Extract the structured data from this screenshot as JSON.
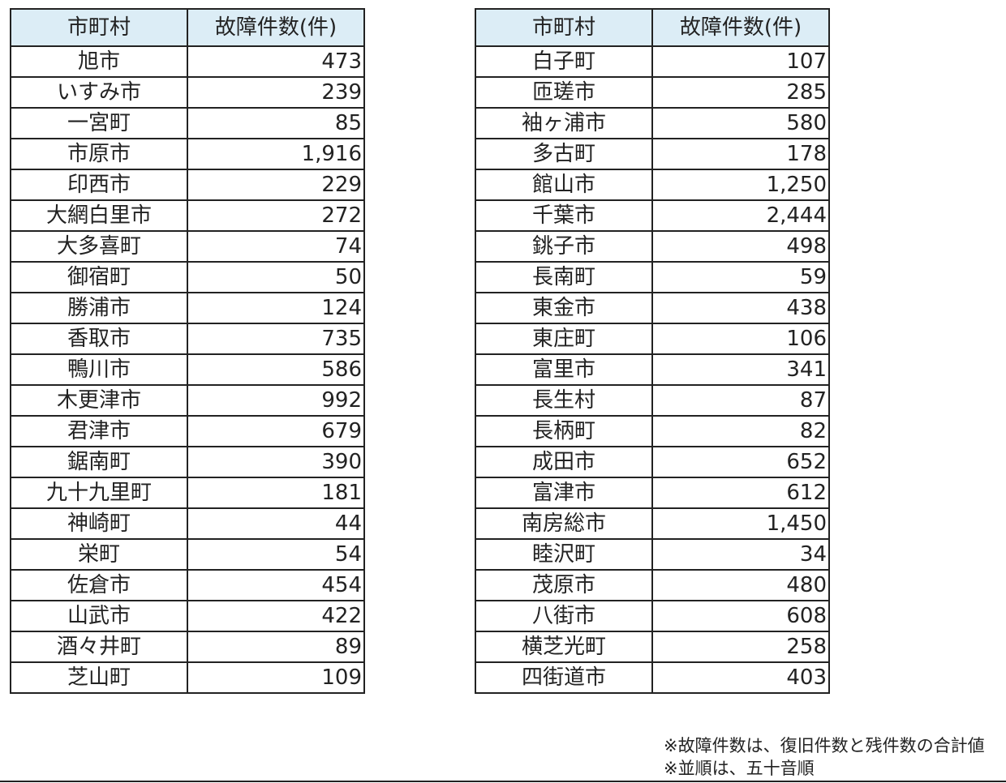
{
  "headers": {
    "municipality": "市町村",
    "count": "故障件数(件)"
  },
  "left_rows": [
    {
      "name": "旭市",
      "count": "473"
    },
    {
      "name": "いすみ市",
      "count": "239"
    },
    {
      "name": "一宮町",
      "count": "85"
    },
    {
      "name": "市原市",
      "count": "1,916"
    },
    {
      "name": "印西市",
      "count": "229"
    },
    {
      "name": "大網白里市",
      "count": "272"
    },
    {
      "name": "大多喜町",
      "count": "74"
    },
    {
      "name": "御宿町",
      "count": "50"
    },
    {
      "name": "勝浦市",
      "count": "124"
    },
    {
      "name": "香取市",
      "count": "735"
    },
    {
      "name": "鴨川市",
      "count": "586"
    },
    {
      "name": "木更津市",
      "count": "992"
    },
    {
      "name": "君津市",
      "count": "679"
    },
    {
      "name": "鋸南町",
      "count": "390"
    },
    {
      "name": "九十九里町",
      "count": "181"
    },
    {
      "name": "神崎町",
      "count": "44"
    },
    {
      "name": "栄町",
      "count": "54"
    },
    {
      "name": "佐倉市",
      "count": "454"
    },
    {
      "name": "山武市",
      "count": "422"
    },
    {
      "name": "酒々井町",
      "count": "89"
    },
    {
      "name": "芝山町",
      "count": "109"
    }
  ],
  "right_rows": [
    {
      "name": "白子町",
      "count": "107"
    },
    {
      "name": "匝瑳市",
      "count": "285"
    },
    {
      "name": "袖ヶ浦市",
      "count": "580"
    },
    {
      "name": "多古町",
      "count": "178"
    },
    {
      "name": "館山市",
      "count": "1,250"
    },
    {
      "name": "千葉市",
      "count": "2,444"
    },
    {
      "name": "銚子市",
      "count": "498"
    },
    {
      "name": "長南町",
      "count": "59"
    },
    {
      "name": "東金市",
      "count": "438"
    },
    {
      "name": "東庄町",
      "count": "106"
    },
    {
      "name": "富里市",
      "count": "341"
    },
    {
      "name": "長生村",
      "count": "87"
    },
    {
      "name": "長柄町",
      "count": "82"
    },
    {
      "name": "成田市",
      "count": "652"
    },
    {
      "name": "富津市",
      "count": "612"
    },
    {
      "name": "南房総市",
      "count": "1,450"
    },
    {
      "name": "睦沢町",
      "count": "34"
    },
    {
      "name": "茂原市",
      "count": "480"
    },
    {
      "name": "八街市",
      "count": "608"
    },
    {
      "name": "横芝光町",
      "count": "258"
    },
    {
      "name": "四街道市",
      "count": "403"
    }
  ],
  "notes": [
    "※故障件数は、復旧件数と残件数の合計値",
    "※並順は、五十音順"
  ],
  "colors": {
    "header_bg": "#dcedf6",
    "border": "#222222",
    "text": "#222222"
  }
}
